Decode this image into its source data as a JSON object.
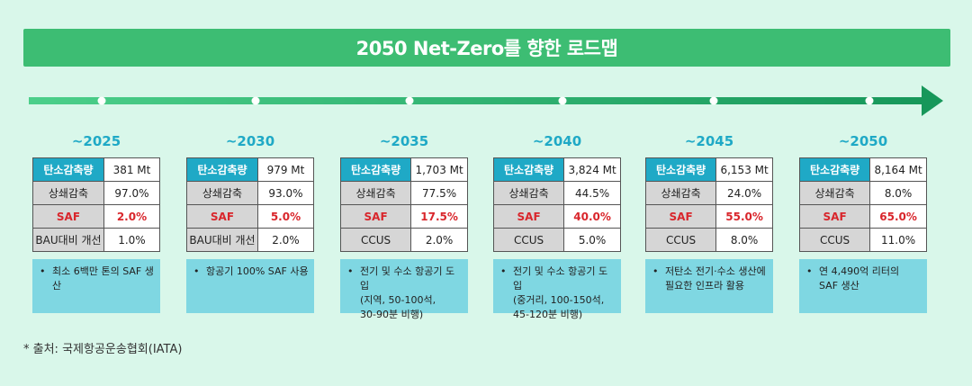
{
  "title": "2050 Net-Zero를 향한 로드맵",
  "colors": {
    "background": "#d9f7ea",
    "banner": "#3dbd73",
    "arrow": "#1f9d5c",
    "accent": "#1fa9c6",
    "saf_red": "#d9262c",
    "note_bg": "#7fd7e2",
    "label_gray": "#d6d6d6"
  },
  "bullet_symbol": "•",
  "milestones": [
    {
      "year": "~2025",
      "rows": [
        {
          "label": "탄소감축량",
          "value": "381 Mt"
        },
        {
          "label": "상쇄감축",
          "value": "97.0%"
        },
        {
          "label": "SAF",
          "value": "2.0%"
        },
        {
          "label": "BAU대비 개선",
          "value": "1.0%"
        }
      ],
      "note": "최소 6백만 톤의 SAF 생산"
    },
    {
      "year": "~2030",
      "rows": [
        {
          "label": "탄소감축량",
          "value": "979 Mt"
        },
        {
          "label": "상쇄감축",
          "value": "93.0%"
        },
        {
          "label": "SAF",
          "value": "5.0%"
        },
        {
          "label": "BAU대비 개선",
          "value": "2.0%"
        }
      ],
      "note": "항공기 100% SAF 사용"
    },
    {
      "year": "~2035",
      "rows": [
        {
          "label": "탄소감축량",
          "value": "1,703 Mt"
        },
        {
          "label": "상쇄감축",
          "value": "77.5%"
        },
        {
          "label": "SAF",
          "value": "17.5%"
        },
        {
          "label": "CCUS",
          "value": "2.0%"
        }
      ],
      "note": "전기 및 수소 항공기 도입\n(지역, 50-100석,\n30-90분 비행)"
    },
    {
      "year": "~2040",
      "rows": [
        {
          "label": "탄소감축량",
          "value": "3,824 Mt"
        },
        {
          "label": "상쇄감축",
          "value": "44.5%"
        },
        {
          "label": "SAF",
          "value": "40.0%"
        },
        {
          "label": "CCUS",
          "value": "5.0%"
        }
      ],
      "note": "전기 및 수소 항공기 도입\n(중거리, 100-150석,\n45-120분 비행)"
    },
    {
      "year": "~2045",
      "rows": [
        {
          "label": "탄소감축량",
          "value": "6,153 Mt"
        },
        {
          "label": "상쇄감축",
          "value": "24.0%"
        },
        {
          "label": "SAF",
          "value": "55.0%"
        },
        {
          "label": "CCUS",
          "value": "8.0%"
        }
      ],
      "note": "저탄소 전기·수소 생산에\n필요한 인프라 활용"
    },
    {
      "year": "~2050",
      "rows": [
        {
          "label": "탄소감축량",
          "value": "8,164 Mt"
        },
        {
          "label": "상쇄감축",
          "value": "8.0%"
        },
        {
          "label": "SAF",
          "value": "65.0%"
        },
        {
          "label": "CCUS",
          "value": "11.0%"
        }
      ],
      "note": "연 4,490억 리터의\nSAF 생산"
    }
  ],
  "source": "* 출처: 국제항공운송협회(IATA)"
}
